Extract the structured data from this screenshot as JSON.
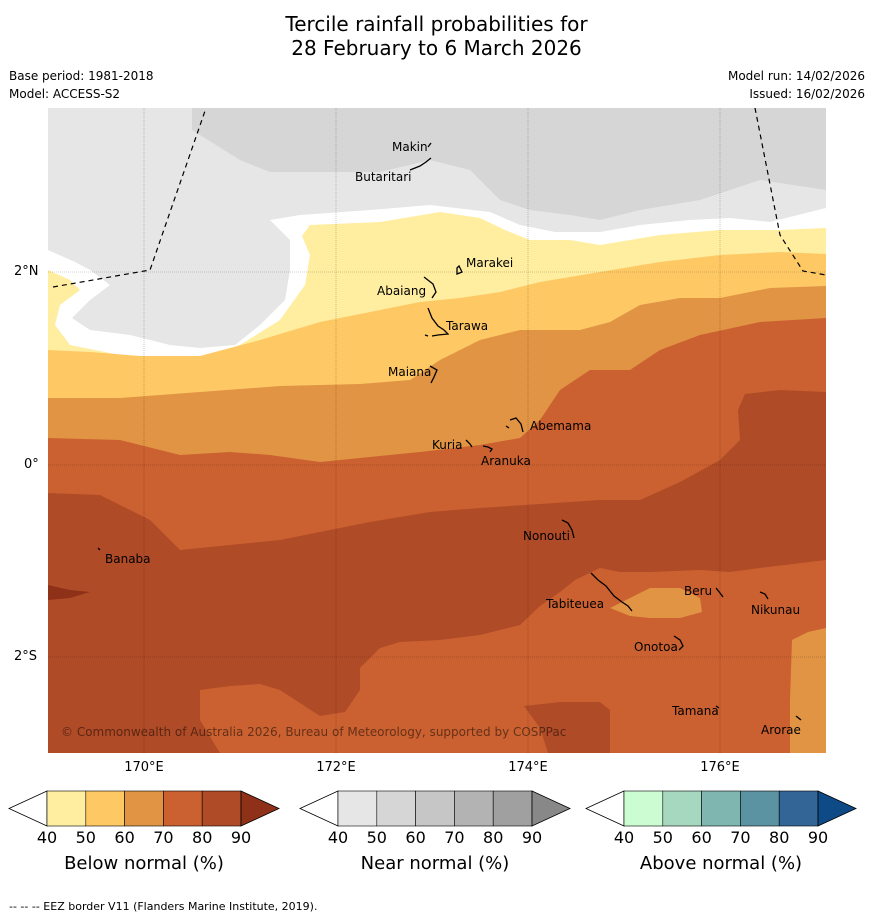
{
  "title_line1": "Tercile rainfall probabilities for",
  "title_line2": "28 February to 6 March 2026",
  "base_period": "Base period: 1981-2018",
  "model": "Model: ACCESS-S2",
  "model_run": "Model run: 14/02/2026",
  "issued": "Issued: 16/02/2026",
  "lat_labels": [
    "2°N",
    "0°",
    "2°S"
  ],
  "lon_labels": [
    "170°E",
    "172°E",
    "174°E",
    "176°E"
  ],
  "places": [
    "Makin",
    "Butaritari",
    "Marakei",
    "Abaiang",
    "Tarawa",
    "Maiana",
    "Abemama",
    "Kuria",
    "Aranuka",
    "Banaba",
    "Nonouti",
    "Beru",
    "Tabiteuea",
    "Nikunau",
    "Onotoa",
    "Tamana",
    "Arorae"
  ],
  "copyright": "© Commonwealth of Australia 2026, Bureau of Meteorology, supported by COSPPac",
  "colorbars": [
    {
      "title": "Below normal (%)",
      "ticks": [
        "40",
        "50",
        "60",
        "70",
        "80",
        "90"
      ],
      "colors": [
        "#ffffff",
        "#ffeda0",
        "#fec965",
        "#e09444",
        "#cb6130",
        "#b04b27",
        "#8f3018"
      ]
    },
    {
      "title": "Near normal (%)",
      "ticks": [
        "40",
        "50",
        "60",
        "70",
        "80",
        "90"
      ],
      "colors": [
        "#ffffff",
        "#e6e6e6",
        "#d6d6d6",
        "#c6c6c6",
        "#b3b3b3",
        "#a0a0a0",
        "#888888"
      ]
    },
    {
      "title": "Above normal (%)",
      "ticks": [
        "40",
        "50",
        "60",
        "70",
        "80",
        "90"
      ],
      "colors": [
        "#ffffff",
        "#ccfdd2",
        "#a5d8bf",
        "#7fb6b0",
        "#5b93a2",
        "#336597",
        "#0e4a86"
      ]
    }
  ],
  "footer": "--  --  -- EEZ border V11 (Flanders Marine Institute, 2019)."
}
